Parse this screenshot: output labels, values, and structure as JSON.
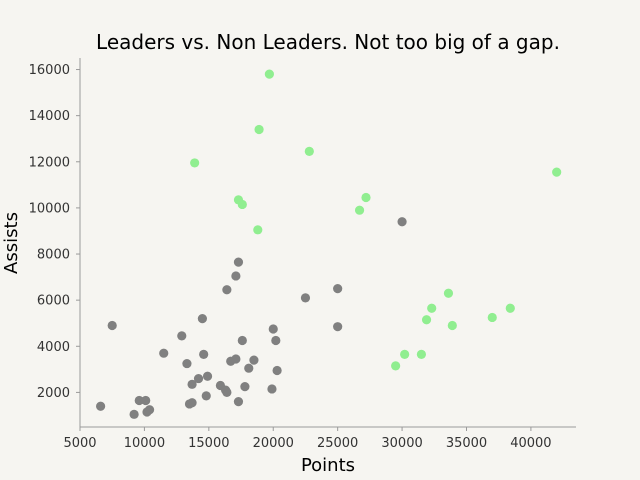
{
  "chart_data": {
    "type": "scatter",
    "title": "Leaders vs. Non Leaders. Not too big of a gap.",
    "xlabel": "Points",
    "ylabel": "Assists",
    "xlim": [
      5000,
      43500
    ],
    "ylim": [
      500,
      16500
    ],
    "xticks": [
      "5000",
      "10000",
      "15000",
      "20000",
      "25000",
      "30000",
      "35000",
      "40000"
    ],
    "yticks": [
      "2000",
      "4000",
      "6000",
      "8000",
      "10000",
      "12000",
      "14000",
      "16000"
    ],
    "grid": false,
    "legend": "none",
    "series": [
      {
        "color": "#808080",
        "points": [
          [
            6600,
            1400
          ],
          [
            7500,
            4900
          ],
          [
            9200,
            1050
          ],
          [
            9600,
            1650
          ],
          [
            10100,
            1650
          ],
          [
            10200,
            1150
          ],
          [
            10400,
            1250
          ],
          [
            11500,
            3700
          ],
          [
            12900,
            4450
          ],
          [
            13300,
            3250
          ],
          [
            13500,
            1500
          ],
          [
            13700,
            1550
          ],
          [
            13700,
            2350
          ],
          [
            14200,
            2600
          ],
          [
            14500,
            5200
          ],
          [
            14600,
            3650
          ],
          [
            14800,
            1850
          ],
          [
            14900,
            2700
          ],
          [
            15900,
            2300
          ],
          [
            16300,
            2100
          ],
          [
            16400,
            6450
          ],
          [
            16400,
            2000
          ],
          [
            16700,
            3350
          ],
          [
            17100,
            3450
          ],
          [
            17100,
            7050
          ],
          [
            17300,
            7650
          ],
          [
            17300,
            1600
          ],
          [
            17600,
            4250
          ],
          [
            17800,
            2250
          ],
          [
            18100,
            3050
          ],
          [
            18500,
            3400
          ],
          [
            19900,
            2150
          ],
          [
            20000,
            4750
          ],
          [
            20200,
            4250
          ],
          [
            20300,
            2950
          ],
          [
            22500,
            6100
          ],
          [
            25000,
            6500
          ],
          [
            25000,
            4850
          ],
          [
            30000,
            9400
          ]
        ]
      },
      {
        "color": "#90ee90",
        "points": [
          [
            13900,
            11950
          ],
          [
            17300,
            10350
          ],
          [
            17600,
            10150
          ],
          [
            18800,
            9050
          ],
          [
            18900,
            13400
          ],
          [
            19700,
            15800
          ],
          [
            22800,
            12450
          ],
          [
            26700,
            9900
          ],
          [
            27200,
            10450
          ],
          [
            29500,
            3150
          ],
          [
            30200,
            3650
          ],
          [
            31500,
            3650
          ],
          [
            31900,
            5150
          ],
          [
            32300,
            5650
          ],
          [
            33600,
            6300
          ],
          [
            33900,
            4900
          ],
          [
            37000,
            5250
          ],
          [
            38400,
            5650
          ],
          [
            42000,
            11550
          ]
        ]
      }
    ]
  }
}
